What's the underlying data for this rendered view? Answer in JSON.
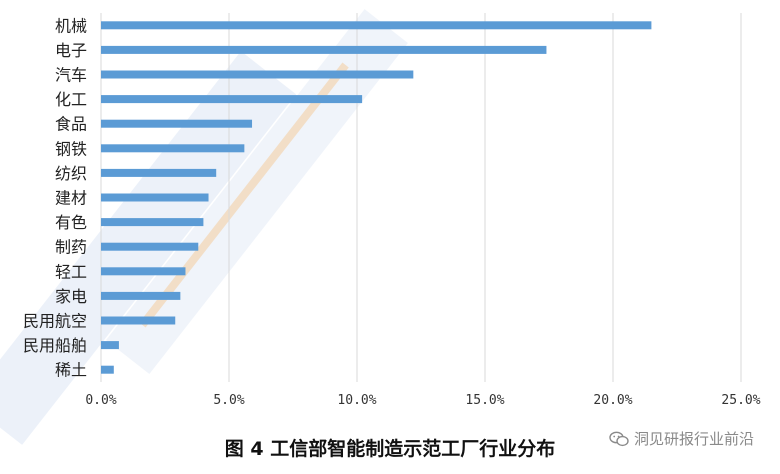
{
  "chart_data": {
    "type": "bar",
    "orientation": "horizontal",
    "categories": [
      "机械",
      "电子",
      "汽车",
      "化工",
      "食品",
      "钢铁",
      "纺织",
      "建材",
      "有色",
      "制药",
      "轻工",
      "家电",
      "民用航空",
      "民用船舶",
      "稀土"
    ],
    "values": [
      21.5,
      17.4,
      12.2,
      10.2,
      5.9,
      5.6,
      4.5,
      4.2,
      4.0,
      3.8,
      3.3,
      3.1,
      2.9,
      0.7,
      0.5
    ],
    "xticks": [
      "0.0%",
      "5.0%",
      "10.0%",
      "15.0%",
      "20.0%",
      "25.0%"
    ],
    "xlim": [
      0,
      25
    ],
    "grid": true,
    "title": "",
    "xlabel": "",
    "ylabel": "",
    "bar_color": "#5b9bd5"
  },
  "caption": "图 4  工信部智能制造示范工厂行业分布",
  "watermark": {
    "icon": "wechat-icon",
    "text": "洞见研报行业前沿"
  },
  "background_watermark_color": "#c9d7ee"
}
